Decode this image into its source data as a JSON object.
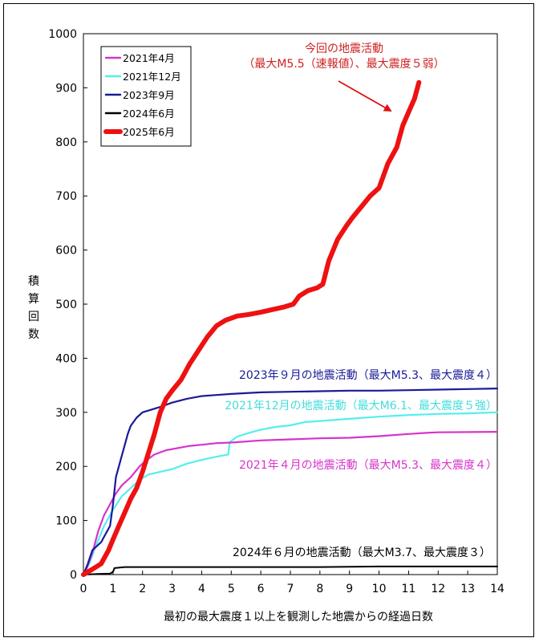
{
  "chart_data": {
    "type": "line",
    "xlabel": "最初の最大震度１以上を観測した地震からの経過日数",
    "ylabel": "積算回数",
    "xlim": [
      0,
      14
    ],
    "ylim": [
      0,
      1000
    ],
    "x_ticks": [
      "0",
      "1",
      "2",
      "3",
      "4",
      "5",
      "6",
      "7",
      "8",
      "9",
      "10",
      "11",
      "12",
      "13",
      "14"
    ],
    "y_ticks": [
      "0",
      "100",
      "200",
      "300",
      "400",
      "500",
      "600",
      "700",
      "800",
      "900",
      "1000"
    ],
    "grid": false,
    "legend_position": "top-left",
    "series": [
      {
        "name": "2021年4月",
        "color": "#d633cc",
        "annotation": "2021年４月の地震活動（最大M5.3、最大震度４）",
        "points": [
          [
            0,
            0
          ],
          [
            0.1,
            10
          ],
          [
            0.3,
            40
          ],
          [
            0.5,
            80
          ],
          [
            0.7,
            110
          ],
          [
            0.9,
            130
          ],
          [
            1.1,
            150
          ],
          [
            1.3,
            165
          ],
          [
            1.6,
            180
          ],
          [
            1.9,
            200
          ],
          [
            2.1,
            210
          ],
          [
            2.4,
            222
          ],
          [
            2.8,
            230
          ],
          [
            3.2,
            234
          ],
          [
            3.6,
            238
          ],
          [
            4.0,
            240
          ],
          [
            4.5,
            243
          ],
          [
            5.0,
            244
          ],
          [
            6,
            248
          ],
          [
            7,
            250
          ],
          [
            8,
            252
          ],
          [
            9,
            253
          ],
          [
            10,
            256
          ],
          [
            11,
            260
          ],
          [
            11.6,
            262
          ],
          [
            12,
            263
          ],
          [
            14,
            264
          ]
        ]
      },
      {
        "name": "2021年12月",
        "color": "#55eeee",
        "annotation": "2021年12月の地震活動（最大M6.1、最大震度５強）",
        "points": [
          [
            0,
            0
          ],
          [
            0.2,
            20
          ],
          [
            0.4,
            50
          ],
          [
            0.7,
            90
          ],
          [
            1.0,
            120
          ],
          [
            1.3,
            145
          ],
          [
            1.6,
            160
          ],
          [
            1.9,
            175
          ],
          [
            2.2,
            185
          ],
          [
            2.6,
            190
          ],
          [
            3.0,
            195
          ],
          [
            3.5,
            205
          ],
          [
            4.0,
            212
          ],
          [
            4.5,
            218
          ],
          [
            4.9,
            222
          ],
          [
            4.95,
            245
          ],
          [
            5.2,
            255
          ],
          [
            5.6,
            262
          ],
          [
            6.0,
            268
          ],
          [
            6.5,
            273
          ],
          [
            7,
            276
          ],
          [
            7.5,
            282
          ],
          [
            8,
            284
          ],
          [
            9,
            288
          ],
          [
            10,
            292
          ],
          [
            11,
            295
          ],
          [
            12,
            297
          ],
          [
            13,
            298
          ],
          [
            14,
            300
          ]
        ]
      },
      {
        "name": "2023年9月",
        "color": "#1a1a99",
        "annotation": "2023年９月の地震活動（最大M5.3、最大震度４）",
        "points": [
          [
            0,
            0
          ],
          [
            0.15,
            20
          ],
          [
            0.3,
            45
          ],
          [
            0.6,
            60
          ],
          [
            0.9,
            90
          ],
          [
            1.0,
            130
          ],
          [
            1.1,
            180
          ],
          [
            1.3,
            220
          ],
          [
            1.5,
            260
          ],
          [
            1.6,
            275
          ],
          [
            1.8,
            290
          ],
          [
            2.0,
            300
          ],
          [
            2.3,
            305
          ],
          [
            2.6,
            310
          ],
          [
            3.0,
            318
          ],
          [
            3.5,
            325
          ],
          [
            4.0,
            330
          ],
          [
            4.5,
            332
          ],
          [
            5.0,
            334
          ],
          [
            6,
            337
          ],
          [
            7,
            338
          ],
          [
            8,
            339
          ],
          [
            9,
            340
          ],
          [
            10,
            340
          ],
          [
            11,
            341
          ],
          [
            12,
            342
          ],
          [
            13,
            343
          ],
          [
            14,
            344
          ]
        ]
      },
      {
        "name": "2024年6月",
        "color": "#000000",
        "annotation": "2024年６月の地震活動（最大M3.7、最大震度３）",
        "points": [
          [
            0,
            0
          ],
          [
            0.9,
            2
          ],
          [
            1.0,
            5
          ],
          [
            1.05,
            12
          ],
          [
            1.4,
            14
          ],
          [
            2,
            14
          ],
          [
            4,
            14
          ],
          [
            6,
            14
          ],
          [
            8,
            14
          ],
          [
            10,
            15
          ],
          [
            12,
            15
          ],
          [
            14,
            15
          ]
        ]
      },
      {
        "name": "2025年6月",
        "color": "#ee1111",
        "annotation": "今回の地震活動\n（最大M5.5（速報値）、最大震度５弱）",
        "points": [
          [
            0,
            0
          ],
          [
            0.3,
            10
          ],
          [
            0.6,
            20
          ],
          [
            0.85,
            45
          ],
          [
            1.0,
            65
          ],
          [
            1.2,
            90
          ],
          [
            1.4,
            115
          ],
          [
            1.6,
            140
          ],
          [
            1.8,
            160
          ],
          [
            2.0,
            190
          ],
          [
            2.2,
            225
          ],
          [
            2.4,
            260
          ],
          [
            2.6,
            300
          ],
          [
            2.8,
            325
          ],
          [
            3.0,
            340
          ],
          [
            3.3,
            360
          ],
          [
            3.6,
            390
          ],
          [
            3.9,
            415
          ],
          [
            4.2,
            440
          ],
          [
            4.5,
            460
          ],
          [
            4.8,
            470
          ],
          [
            5.2,
            478
          ],
          [
            5.6,
            481
          ],
          [
            6.0,
            485
          ],
          [
            6.4,
            490
          ],
          [
            6.8,
            495
          ],
          [
            7.1,
            500
          ],
          [
            7.3,
            515
          ],
          [
            7.6,
            525
          ],
          [
            7.9,
            530
          ],
          [
            8.1,
            537
          ],
          [
            8.3,
            580
          ],
          [
            8.6,
            620
          ],
          [
            8.9,
            645
          ],
          [
            9.1,
            660
          ],
          [
            9.4,
            680
          ],
          [
            9.7,
            700
          ],
          [
            10.0,
            715
          ],
          [
            10.3,
            760
          ],
          [
            10.6,
            790
          ],
          [
            10.8,
            830
          ],
          [
            11.0,
            855
          ],
          [
            11.2,
            880
          ],
          [
            11.35,
            910
          ]
        ]
      }
    ]
  }
}
